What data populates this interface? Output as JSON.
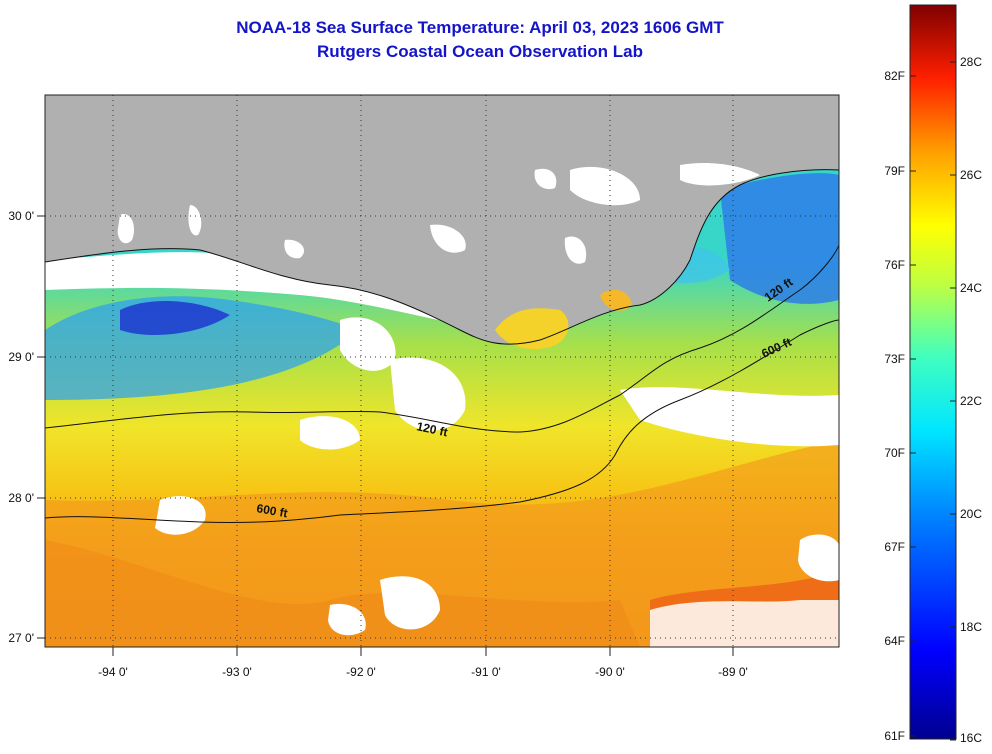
{
  "title": {
    "line1": "NOAA-18 Sea Surface Temperature:  April 03, 2023 1606 GMT",
    "line2": "Rutgers Coastal Ocean Observation Lab"
  },
  "map": {
    "lon_labels": [
      "-94 0'",
      "-93 0'",
      "-92 0'",
      "-91 0'",
      "-90 0'",
      "-89 0'"
    ],
    "lat_labels": [
      "30 0'",
      "29 0'",
      "28 0'",
      "27 0'"
    ],
    "contours": [
      {
        "label": "120 ft"
      },
      {
        "label": "600 ft"
      },
      {
        "label": "120 ft"
      },
      {
        "label": "600 ft"
      }
    ],
    "colors": {
      "land": "#b0b0b0",
      "no_data": "#ffffff",
      "grid": "#333333"
    }
  },
  "colorbar": {
    "fahrenheit_labels": [
      "82F",
      "79F",
      "76F",
      "73F",
      "70F",
      "67F",
      "64F",
      "61F"
    ],
    "celsius_labels": [
      "28C",
      "26C",
      "24C",
      "22C",
      "20C",
      "18C",
      "16C"
    ]
  }
}
